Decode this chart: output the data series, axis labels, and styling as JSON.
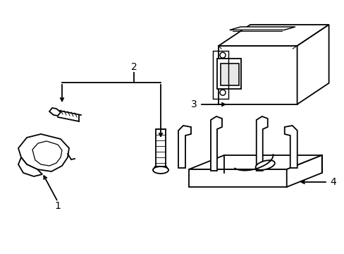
{
  "background_color": "#ffffff",
  "line_color": "#000000",
  "line_width": 1.3,
  "label_fontsize": 10,
  "figsize": [
    4.89,
    3.6
  ],
  "dpi": 100
}
